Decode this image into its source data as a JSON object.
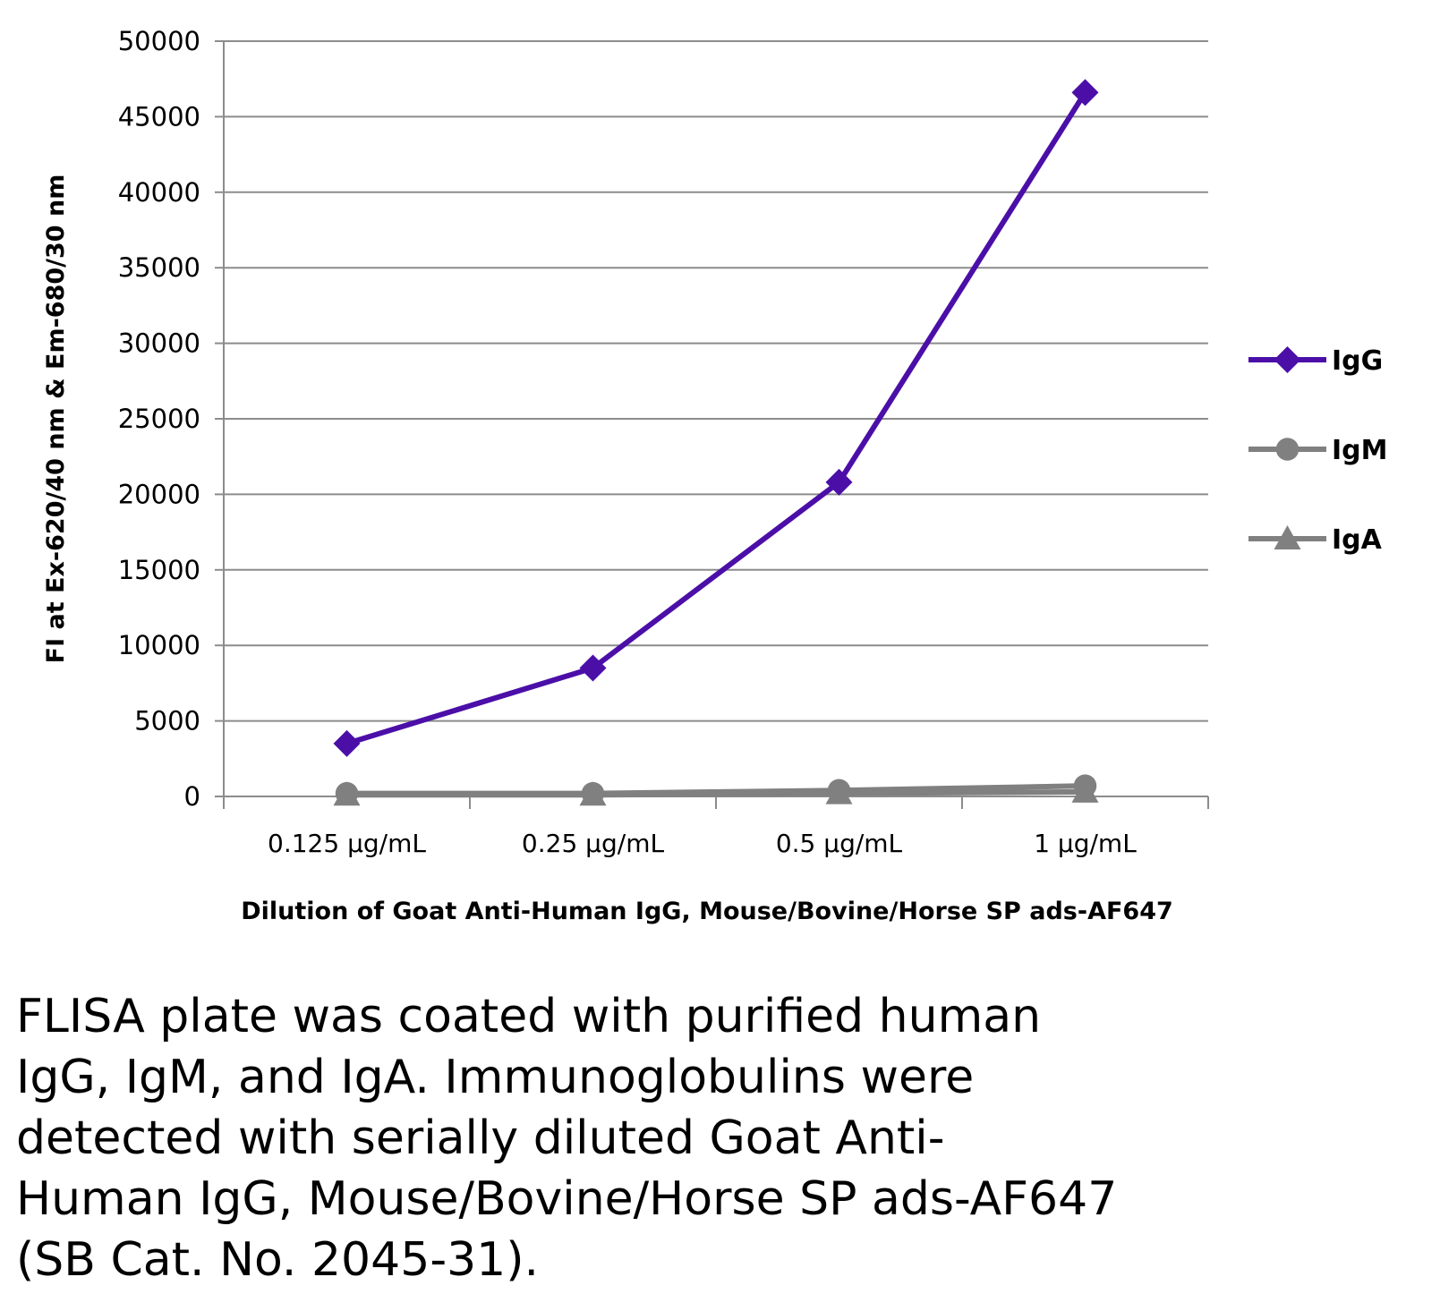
{
  "chart_data": {
    "type": "line",
    "title": "",
    "xlabel": "Dilution of Goat Anti-Human IgG, Mouse/Bovine/Horse SP ads-AF647",
    "ylabel": "FI at Ex-620/40 nm & Em-680/30 nm",
    "categories": [
      "0.125 µg/mL",
      "0.25 µg/mL",
      "0.5 µg/mL",
      "1 µg/mL"
    ],
    "ylim": [
      0,
      50000
    ],
    "yticks": [
      "0",
      "5000",
      "10000",
      "15000",
      "20000",
      "25000",
      "30000",
      "35000",
      "40000",
      "45000",
      "50000"
    ],
    "grid": true,
    "legend_position": "right",
    "series": [
      {
        "name": "IgG",
        "values": [
          3500,
          8500,
          20800,
          46600
        ],
        "color": "#4B0FA8",
        "marker": "diamond"
      },
      {
        "name": "IgM",
        "values": [
          200,
          200,
          400,
          700
        ],
        "color": "#808080",
        "marker": "circle"
      },
      {
        "name": "IgA",
        "values": [
          100,
          100,
          200,
          300
        ],
        "color": "#808080",
        "marker": "triangle"
      }
    ]
  },
  "caption": "FLISA plate was coated with purified human\nIgG, IgM, and IgA.  Immunoglobulins were\ndetected with serially diluted Goat Anti-\nHuman IgG, Mouse/Bovine/Horse SP ads-AF647\n(SB Cat. No. 2045-31)."
}
